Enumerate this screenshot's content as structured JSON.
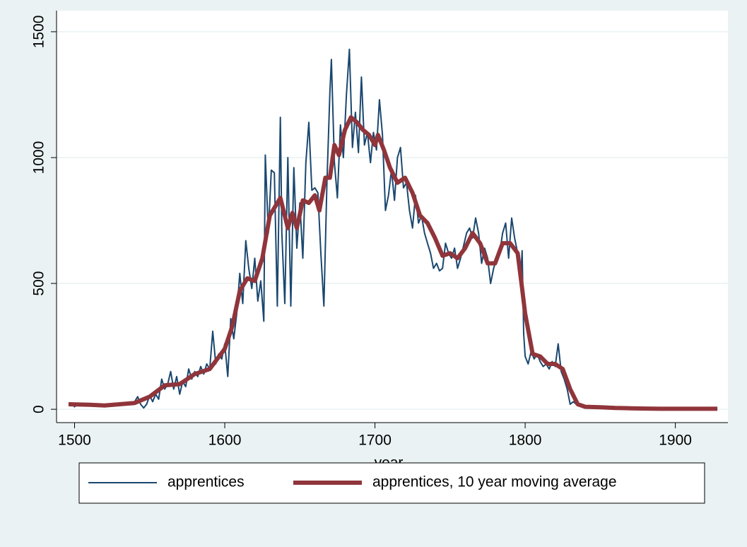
{
  "chart_data": {
    "type": "line",
    "xlabel": "year",
    "xlim": [
      1488,
      1935
    ],
    "xticks": [
      1500,
      1600,
      1700,
      1800,
      1900
    ],
    "ylim": [
      -53,
      1584
    ],
    "yticks": [
      0,
      500,
      1000,
      1500
    ],
    "grid": true,
    "legend": "bottom",
    "series": [
      {
        "name": "apprentices",
        "color": "#1a476f",
        "x": [
          1496,
          1498,
          1500,
          1502,
          1505,
          1510,
          1515,
          1520,
          1525,
          1530,
          1535,
          1540,
          1542,
          1544,
          1546,
          1548,
          1550,
          1552,
          1554,
          1556,
          1558,
          1560,
          1562,
          1564,
          1566,
          1568,
          1570,
          1572,
          1574,
          1576,
          1578,
          1580,
          1582,
          1584,
          1586,
          1588,
          1590,
          1592,
          1594,
          1596,
          1598,
          1600,
          1602,
          1604,
          1606,
          1608,
          1610,
          1612,
          1614,
          1616,
          1618,
          1620,
          1622,
          1624,
          1626,
          1627,
          1629,
          1631,
          1633,
          1635,
          1637,
          1638,
          1640,
          1642,
          1644,
          1646,
          1648,
          1650,
          1652,
          1654,
          1656,
          1658,
          1660,
          1662,
          1664,
          1666,
          1668,
          1670,
          1671,
          1673,
          1675,
          1677,
          1679,
          1681,
          1683,
          1685,
          1687,
          1689,
          1691,
          1693,
          1695,
          1697,
          1699,
          1701,
          1703,
          1705,
          1707,
          1709,
          1711,
          1713,
          1715,
          1717,
          1719,
          1721,
          1723,
          1725,
          1727,
          1729,
          1731,
          1733,
          1735,
          1737,
          1739,
          1741,
          1743,
          1745,
          1747,
          1749,
          1751,
          1753,
          1755,
          1757,
          1759,
          1761,
          1763,
          1765,
          1767,
          1769,
          1771,
          1773,
          1775,
          1777,
          1779,
          1781,
          1783,
          1785,
          1787,
          1789,
          1791,
          1793,
          1795,
          1797,
          1798,
          1799,
          1800,
          1802,
          1804,
          1806,
          1808,
          1810,
          1812,
          1814,
          1816,
          1818,
          1820,
          1822,
          1824,
          1826,
          1828,
          1830,
          1832,
          1835,
          1840,
          1850,
          1860,
          1870,
          1880,
          1890,
          1900,
          1910,
          1920,
          1928
        ],
        "values": [
          20,
          25,
          10,
          22,
          15,
          18,
          12,
          15,
          20,
          22,
          25,
          30,
          50,
          20,
          5,
          20,
          55,
          30,
          60,
          40,
          120,
          80,
          100,
          150,
          80,
          130,
          60,
          110,
          90,
          160,
          120,
          150,
          130,
          170,
          140,
          180,
          160,
          310,
          180,
          220,
          200,
          260,
          130,
          360,
          280,
          380,
          540,
          420,
          670,
          560,
          480,
          600,
          430,
          510,
          350,
          1010,
          700,
          950,
          940,
          410,
          1160,
          700,
          420,
          1000,
          410,
          960,
          640,
          820,
          600,
          980,
          1140,
          870,
          880,
          860,
          620,
          410,
          900,
          1260,
          1390,
          980,
          840,
          1130,
          1000,
          1250,
          1430,
          1040,
          1180,
          1020,
          1320,
          1050,
          1100,
          980,
          1100,
          1030,
          1230,
          1090,
          790,
          850,
          950,
          830,
          1000,
          1040,
          880,
          900,
          790,
          720,
          850,
          740,
          770,
          700,
          660,
          620,
          560,
          580,
          550,
          560,
          660,
          620,
          600,
          640,
          560,
          600,
          650,
          700,
          720,
          680,
          760,
          700,
          580,
          640,
          600,
          500,
          560,
          600,
          620,
          700,
          740,
          600,
          760,
          680,
          620,
          500,
          630,
          300,
          210,
          180,
          230,
          200,
          220,
          190,
          170,
          180,
          160,
          190,
          170,
          260,
          150,
          120,
          80,
          20,
          30,
          15,
          10,
          8,
          6,
          5,
          4,
          3,
          2,
          2,
          2,
          2
        ]
      },
      {
        "name": "apprentices, 10 year moving average",
        "color": "#90353b",
        "x": [
          1496,
          1510,
          1520,
          1540,
          1550,
          1560,
          1570,
          1580,
          1590,
          1600,
          1605,
          1610,
          1615,
          1620,
          1625,
          1630,
          1637,
          1642,
          1645,
          1648,
          1652,
          1656,
          1660,
          1663,
          1667,
          1670,
          1673,
          1676,
          1680,
          1684,
          1688,
          1692,
          1696,
          1700,
          1702,
          1706,
          1710,
          1715,
          1720,
          1725,
          1730,
          1735,
          1740,
          1745,
          1750,
          1755,
          1760,
          1765,
          1770,
          1775,
          1780,
          1785,
          1790,
          1795,
          1798,
          1800,
          1805,
          1810,
          1815,
          1820,
          1825,
          1830,
          1835,
          1840,
          1850,
          1860,
          1870,
          1880,
          1890,
          1900,
          1928
        ],
        "values": [
          20,
          18,
          15,
          25,
          50,
          95,
          100,
          140,
          160,
          240,
          330,
          470,
          520,
          510,
          600,
          770,
          840,
          720,
          780,
          720,
          830,
          820,
          850,
          790,
          920,
          920,
          1050,
          1010,
          1110,
          1160,
          1140,
          1110,
          1090,
          1050,
          1090,
          1030,
          960,
          900,
          920,
          860,
          770,
          740,
          680,
          610,
          620,
          600,
          640,
          700,
          660,
          580,
          580,
          660,
          660,
          620,
          480,
          380,
          220,
          210,
          180,
          180,
          160,
          80,
          20,
          10,
          8,
          5,
          4,
          3,
          2,
          2,
          2
        ]
      }
    ]
  }
}
